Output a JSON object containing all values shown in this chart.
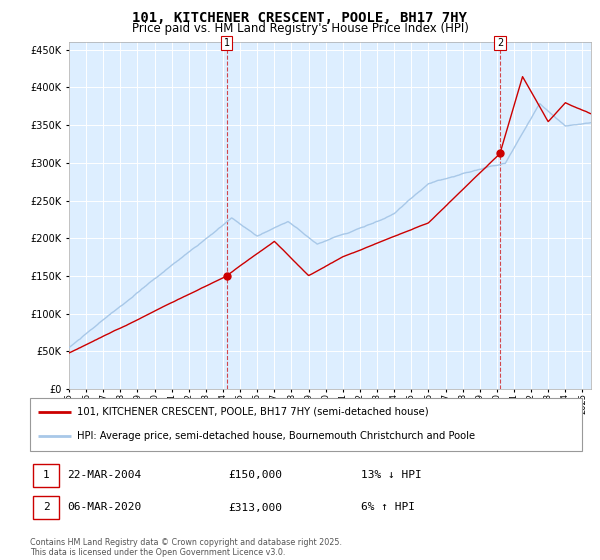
{
  "title": "101, KITCHENER CRESCENT, POOLE, BH17 7HY",
  "subtitle": "Price paid vs. HM Land Registry's House Price Index (HPI)",
  "legend_line1": "101, KITCHENER CRESCENT, POOLE, BH17 7HY (semi-detached house)",
  "legend_line2": "HPI: Average price, semi-detached house, Bournemouth Christchurch and Poole",
  "sale1_date": "22-MAR-2004",
  "sale1_price": "£150,000",
  "sale1_hpi": "13% ↓ HPI",
  "sale2_date": "06-MAR-2020",
  "sale2_price": "£313,000",
  "sale2_hpi": "6% ↑ HPI",
  "footnote": "Contains HM Land Registry data © Crown copyright and database right 2025.\nThis data is licensed under the Open Government Licence v3.0.",
  "red_color": "#cc0000",
  "blue_color": "#a8c8e8",
  "bg_color": "#ddeeff",
  "grid_color": "#ffffff",
  "ylim": [
    0,
    460000
  ],
  "yticks": [
    0,
    50000,
    100000,
    150000,
    200000,
    250000,
    300000,
    350000,
    400000,
    450000
  ],
  "sale1_year": 2004.22,
  "sale1_value": 150000,
  "sale2_year": 2020.18,
  "sale2_value": 313000,
  "xlim_start": 1995,
  "xlim_end": 2025.5
}
